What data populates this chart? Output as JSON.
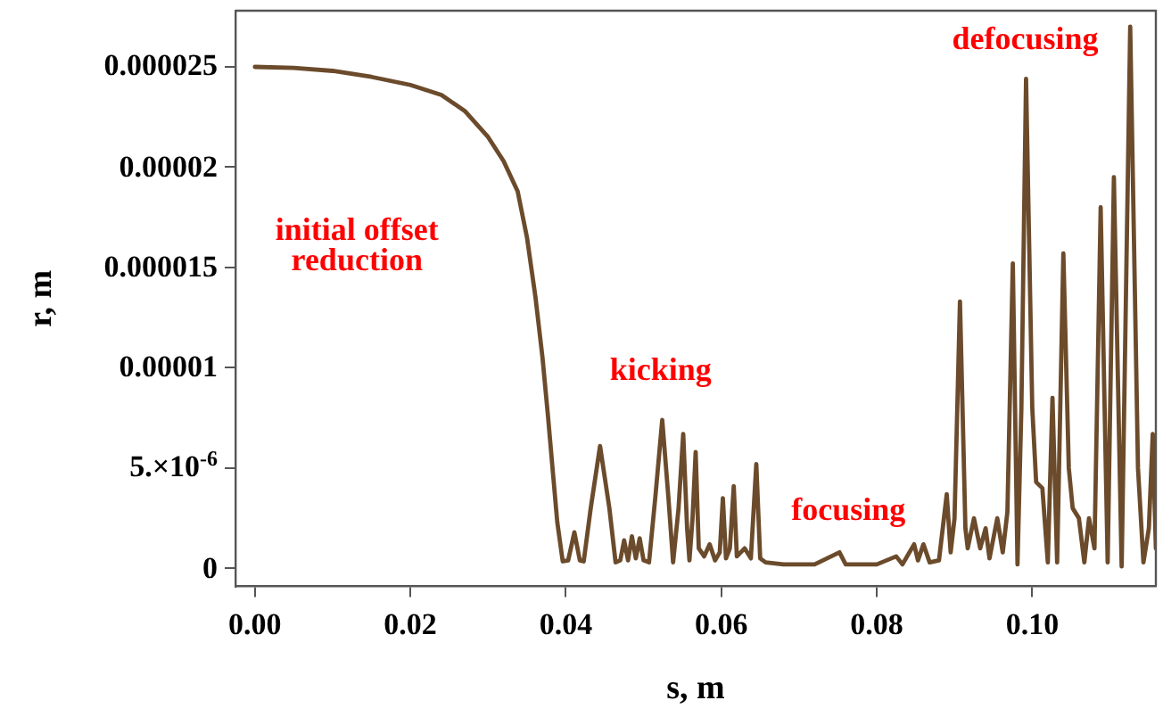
{
  "chart_data": {
    "type": "line",
    "xlabel": "s, m",
    "ylabel": "r, m",
    "xlim": [
      -0.0025,
      0.1159
    ],
    "ylim": [
      -9e-07,
      2.78e-05
    ],
    "xticks": [
      {
        "value": 0,
        "label": "0.00"
      },
      {
        "value": 0.02,
        "label": "0.02"
      },
      {
        "value": 0.04,
        "label": "0.04"
      },
      {
        "value": 0.06,
        "label": "0.06"
      },
      {
        "value": 0.08,
        "label": "0.08"
      },
      {
        "value": 0.1,
        "label": "0.10"
      }
    ],
    "yticks": [
      0,
      {
        "value": 5e-06,
        "label": "5.×10$^{-6}$"
      },
      {
        "value": 1e-05,
        "label": "0.00001"
      },
      {
        "value": 1.5e-05,
        "label": "0.000015"
      },
      {
        "value": 2e-05,
        "label": "0.00002"
      },
      {
        "value": 2.5e-05,
        "label": "0.000025"
      }
    ],
    "grid": false,
    "legend": false,
    "marker": "none",
    "line_style": "solid",
    "annotations": [
      "initial offset reduction",
      "kicking",
      "focusing",
      "defocusing"
    ],
    "series": [
      {
        "color": "#6b4b2b",
        "x": [
          0,
          0.005,
          0.01,
          0.015,
          0.02,
          0.024,
          0.027,
          0.03,
          0.032,
          0.0338,
          0.035,
          0.0361,
          0.037,
          0.0377,
          0.0384,
          0.0389,
          0.0396,
          0.0403,
          0.0411,
          0.0418,
          0.0423,
          0.0432,
          0.0444,
          0.0456,
          0.0464,
          0.047,
          0.0475,
          0.048,
          0.0485,
          0.049,
          0.0495,
          0.05,
          0.0507,
          0.0515,
          0.0524,
          0.0532,
          0.0538,
          0.0545,
          0.0551,
          0.0556,
          0.0559,
          0.0563,
          0.0567,
          0.0571,
          0.0578,
          0.0585,
          0.0592,
          0.0598,
          0.0602,
          0.0606,
          0.0611,
          0.0616,
          0.062,
          0.063,
          0.0638,
          0.0645,
          0.065,
          0.0657,
          0.068,
          0.072,
          0.0752,
          0.076,
          0.08,
          0.0825,
          0.0833,
          0.0848,
          0.0853,
          0.086,
          0.0868,
          0.088,
          0.089,
          0.0895,
          0.09,
          0.0907,
          0.0914,
          0.0917,
          0.0925,
          0.0933,
          0.094,
          0.0945,
          0.0955,
          0.0962,
          0.0968,
          0.0975,
          0.0981,
          0.0986,
          0.0992,
          0.1,
          0.1005,
          0.1013,
          0.102,
          0.1026,
          0.1032,
          0.104,
          0.1047,
          0.1052,
          0.106,
          0.1067,
          0.1073,
          0.108,
          0.1088,
          0.1097,
          0.1105,
          0.1115,
          0.1126,
          0.1136,
          0.1143,
          0.115,
          0.1155,
          0.1159
        ],
        "values": [
          2.5e-05,
          2.495e-05,
          2.48e-05,
          2.45e-05,
          2.41e-05,
          2.36e-05,
          2.28e-05,
          2.15e-05,
          2.03e-05,
          1.88e-05,
          1.65e-05,
          1.35e-05,
          1.05e-05,
          7.6e-06,
          4.5e-06,
          2.3e-06,
          3.5e-07,
          4e-07,
          1.8e-06,
          4e-07,
          3.5e-07,
          3e-06,
          6.1e-06,
          3e-06,
          3e-07,
          4e-07,
          1.4e-06,
          4e-07,
          1.6e-06,
          5e-07,
          1.5e-06,
          4e-07,
          3e-07,
          3.5e-06,
          7.4e-06,
          3.5e-06,
          3e-07,
          3e-06,
          6.7e-06,
          2e-06,
          4e-07,
          2.5e-06,
          5.8e-06,
          1e-06,
          6e-07,
          1.2e-06,
          4e-07,
          8e-07,
          3.5e-06,
          5e-07,
          1e-06,
          4.1e-06,
          6e-07,
          1e-06,
          5e-07,
          5.2e-06,
          5e-07,
          3e-07,
          2e-07,
          2e-07,
          8e-07,
          2e-07,
          2e-07,
          6e-07,
          2e-07,
          1.2e-06,
          4e-07,
          1.2e-06,
          3e-07,
          4e-07,
          3.7e-06,
          8e-07,
          2.5e-06,
          1.33e-05,
          2e-06,
          1e-06,
          2.5e-06,
          1e-06,
          2e-06,
          5e-07,
          2.5e-06,
          8e-07,
          2.8e-06,
          1.52e-05,
          2e-07,
          8e-06,
          2.44e-05,
          8e-06,
          4.3e-06,
          4e-06,
          3e-07,
          8.5e-06,
          3e-07,
          1.57e-05,
          5e-06,
          3e-06,
          2.5e-06,
          3e-07,
          2.5e-06,
          1e-06,
          1.8e-05,
          3e-07,
          1.95e-05,
          1e-07,
          2.7e-05,
          5e-06,
          3e-07,
          2e-06,
          6.7e-06,
          1e-06
        ]
      }
    ]
  }
}
